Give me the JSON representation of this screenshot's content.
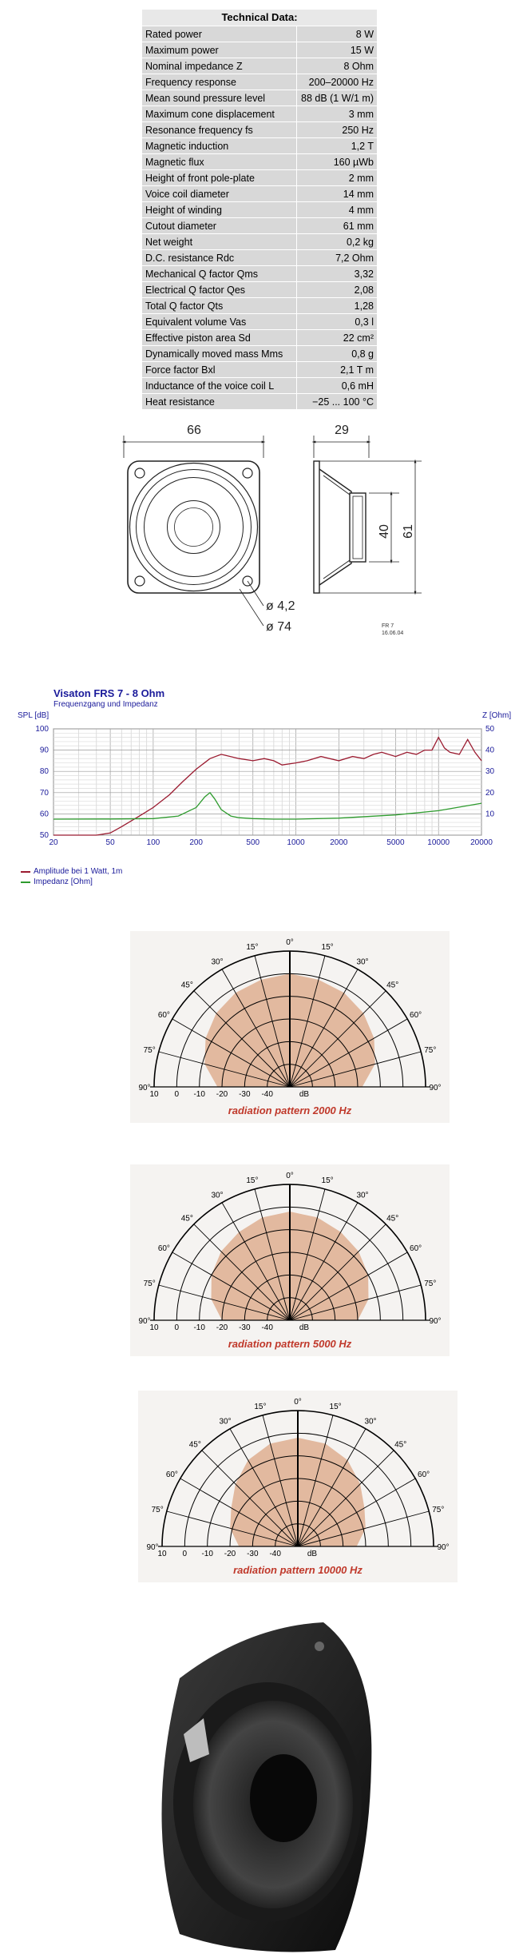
{
  "spec_table": {
    "title": "Technical Data:",
    "rows": [
      {
        "label": "Rated power",
        "value": "8 W"
      },
      {
        "label": "Maximum power",
        "value": "15 W"
      },
      {
        "label": "Nominal impedance Z",
        "value": "8 Ohm"
      },
      {
        "label": "Frequency response",
        "value": "200–20000 Hz"
      },
      {
        "label": "Mean sound pressure level",
        "value": "88 dB (1 W/1 m)"
      },
      {
        "label": "Maximum cone displacement",
        "value": "3 mm"
      },
      {
        "label": "Resonance frequency fs",
        "value": "250 Hz"
      },
      {
        "label": "Magnetic induction",
        "value": "1,2 T"
      },
      {
        "label": "Magnetic flux",
        "value": "160 µWb"
      },
      {
        "label": "Height of front pole-plate",
        "value": "2 mm"
      },
      {
        "label": "Voice coil diameter",
        "value": "14 mm"
      },
      {
        "label": "Height of winding",
        "value": "4 mm"
      },
      {
        "label": "Cutout diameter",
        "value": "61 mm"
      },
      {
        "label": "Net weight",
        "value": "0,2 kg"
      },
      {
        "label": "D.C. resistance Rdc",
        "value": "7,2 Ohm"
      },
      {
        "label": "Mechanical Q factor Qms",
        "value": "3,32"
      },
      {
        "label": "Electrical Q factor Qes",
        "value": "2,08"
      },
      {
        "label": "Total Q factor Qts",
        "value": "1,28"
      },
      {
        "label": "Equivalent volume Vas",
        "value": "0,3 l"
      },
      {
        "label": "Effective piston area Sd",
        "value": "22 cm²"
      },
      {
        "label": "Dynamically moved mass Mms",
        "value": "0,8 g"
      },
      {
        "label": "Force factor Bxl",
        "value": "2,1 T m"
      },
      {
        "label": "Inductance of the voice coil L",
        "value": "0,6 mH"
      },
      {
        "label": "Heat resistance",
        "value": "−25 ... 100 °C"
      }
    ]
  },
  "drawing": {
    "width_label": "66",
    "depth_label": "29",
    "inner_label": "40",
    "cutout_label": "61",
    "hole_label": "ø 4,2",
    "outer_label": "ø 74",
    "code_label": "FR 7",
    "date_label": "16.06.04"
  },
  "freq_chart": {
    "title": "Visaton FRS 7  - 8 Ohm",
    "subtitle": "Frequenzgang und Impedanz",
    "ylabel": "SPL [dB]",
    "y2label": "Z [Ohm]",
    "legend_spl": "Amplitude bei 1 Watt, 1m",
    "legend_imp": "Impedanz [Ohm]",
    "spl_color": "#9b1b30",
    "imp_color": "#2e9b2e"
  },
  "chart_data": [
    {
      "type": "line",
      "x_scale": "log",
      "xlim": [
        20,
        20000
      ],
      "ylim": [
        50,
        100
      ],
      "y2lim": [
        0,
        50
      ],
      "x_ticks": [
        "20",
        "50",
        "100",
        "200",
        "500",
        "1000",
        "2000",
        "5000",
        "10000",
        "20000"
      ],
      "y_ticks": [
        "50",
        "60",
        "70",
        "80",
        "90",
        "100"
      ],
      "y2_ticks": [
        "10",
        "20",
        "30",
        "40",
        "50"
      ],
      "series": [
        {
          "name": "Amplitude bei 1 Watt, 1m",
          "axis": "left",
          "x": [
            20,
            40,
            50,
            60,
            80,
            100,
            130,
            160,
            200,
            250,
            300,
            400,
            500,
            600,
            700,
            800,
            1000,
            1200,
            1500,
            2000,
            2500,
            3000,
            3500,
            4000,
            5000,
            6000,
            7000,
            8000,
            9000,
            10000,
            11000,
            12000,
            14000,
            16000,
            18000,
            20000
          ],
          "y": [
            50,
            50,
            51,
            54,
            59,
            63,
            69,
            75,
            81,
            86,
            88,
            86,
            85,
            86,
            85,
            83,
            84,
            85,
            87,
            85,
            87,
            86,
            88,
            89,
            87,
            89,
            88,
            90,
            90,
            96,
            91,
            89,
            88,
            95,
            89,
            85
          ]
        },
        {
          "name": "Impedanz [Ohm]",
          "axis": "right",
          "x": [
            20,
            50,
            100,
            150,
            200,
            230,
            250,
            270,
            300,
            350,
            400,
            500,
            700,
            1000,
            2000,
            5000,
            10000,
            20000
          ],
          "y": [
            7.5,
            7.6,
            7.8,
            9,
            13,
            18,
            20,
            17,
            12,
            9,
            8.2,
            7.8,
            7.5,
            7.5,
            8,
            9.5,
            11.5,
            15
          ]
        }
      ]
    },
    {
      "type": "polar",
      "caption": "radiation pattern 2000 Hz",
      "angles": [
        "0°",
        "15°",
        "30°",
        "45°",
        "60°",
        "75°",
        "90°"
      ],
      "radial_labels": [
        "10",
        "0",
        "-10",
        "-20",
        "-30",
        "-40",
        "dB"
      ],
      "angle_deg": [
        0,
        15,
        30,
        45,
        60,
        75,
        90
      ],
      "level_db": [
        0,
        -1,
        -2,
        -4,
        -7,
        -11,
        -18
      ]
    },
    {
      "type": "polar",
      "caption": "radiation pattern 5000 Hz",
      "angles": [
        "0°",
        "15°",
        "30°",
        "45°",
        "60°",
        "75°",
        "90°"
      ],
      "radial_labels": [
        "10",
        "0",
        "-10",
        "-20",
        "-30",
        "-40",
        "dB"
      ],
      "angle_deg": [
        0,
        15,
        30,
        45,
        60,
        75,
        90
      ],
      "level_db": [
        -2,
        -3,
        -5,
        -7,
        -10,
        -14,
        -20
      ]
    },
    {
      "type": "polar",
      "caption": "radiation pattern 10000 Hz",
      "angles": [
        "0°",
        "15°",
        "30°",
        "45°",
        "60°",
        "75°",
        "90°"
      ],
      "radial_labels": [
        "10",
        "0",
        "-10",
        "-20",
        "-30",
        "-40",
        "dB"
      ],
      "angle_deg": [
        0,
        15,
        30,
        45,
        60,
        75,
        90
      ],
      "level_db": [
        -2,
        -3,
        -6,
        -11,
        -16,
        -19,
        -24
      ]
    }
  ]
}
